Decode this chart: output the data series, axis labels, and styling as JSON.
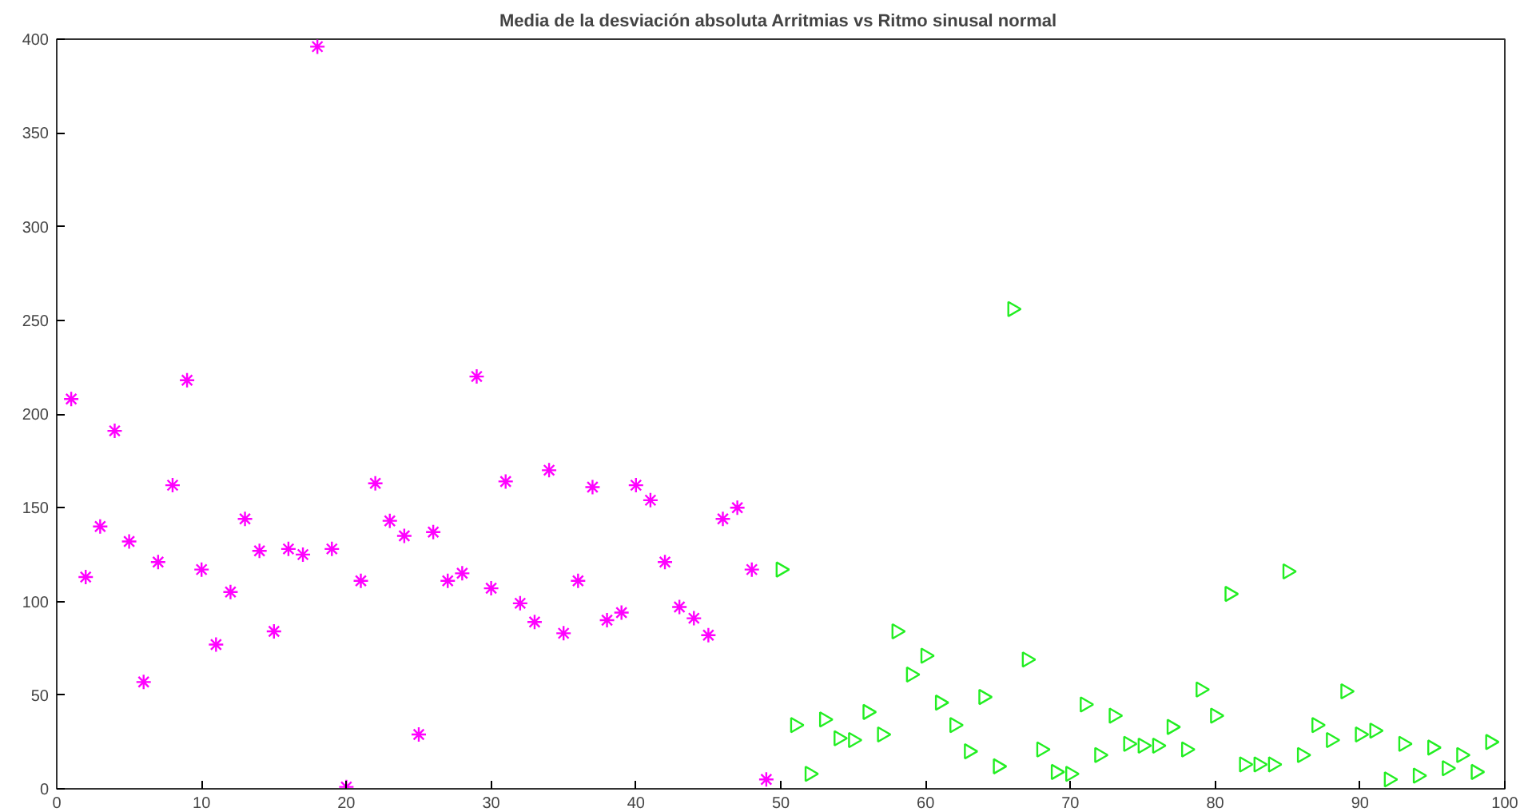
{
  "chart_data": {
    "type": "scatter",
    "title": "Media de la desviación absoluta  Arritmias vs Ritmo sinusal normal",
    "xlim": [
      0,
      100
    ],
    "xticks": [
      0,
      10,
      20,
      30,
      40,
      50,
      60,
      70,
      80,
      90,
      100
    ],
    "ylim": [
      0,
      400
    ],
    "yticks": [
      0,
      50,
      100,
      150,
      200,
      250,
      300,
      350,
      400
    ],
    "grid": false,
    "series": [
      {
        "color": "#ff00ff",
        "marker": "cross",
        "x": [
          1,
          2,
          3,
          4,
          5,
          6,
          7,
          8,
          9,
          10,
          11,
          12,
          13,
          14,
          15,
          16,
          17,
          18,
          19,
          20,
          21,
          22,
          23,
          24,
          25,
          26,
          27,
          28,
          29,
          30,
          31,
          32,
          33,
          34,
          35,
          36,
          37,
          38,
          39,
          40,
          41,
          42,
          43,
          44,
          45,
          46,
          47,
          48,
          49
        ],
        "values": [
          208,
          113,
          140,
          191,
          132,
          57,
          121,
          162,
          218,
          117,
          77,
          105,
          144,
          127,
          84,
          128,
          125,
          396,
          128,
          1,
          111,
          163,
          143,
          135,
          29,
          137,
          111,
          115,
          220,
          107,
          164,
          99,
          89,
          170,
          83,
          111,
          161,
          90,
          94,
          162,
          154,
          121,
          97,
          91,
          82,
          144,
          150,
          117,
          5
        ]
      },
      {
        "color": "#22ee22",
        "marker": "triangle",
        "x": [
          50,
          51,
          52,
          53,
          54,
          55,
          56,
          57,
          58,
          59,
          60,
          61,
          62,
          63,
          64,
          65,
          66,
          67,
          68,
          69,
          70,
          71,
          72,
          73,
          74,
          75,
          76,
          77,
          78,
          79,
          80,
          81,
          82,
          83,
          84,
          85,
          86,
          87,
          88,
          89,
          90,
          91,
          92,
          93,
          94,
          95,
          96,
          97,
          98,
          99
        ],
        "values": [
          117,
          34,
          8,
          37,
          27,
          26,
          41,
          29,
          84,
          61,
          71,
          46,
          34,
          20,
          49,
          12,
          256,
          69,
          21,
          9,
          8,
          45,
          18,
          39,
          24,
          23,
          23,
          33,
          21,
          53,
          39,
          104,
          13,
          13,
          13,
          116,
          18,
          34,
          26,
          52,
          29,
          31,
          5,
          24,
          7,
          22,
          11,
          18,
          9,
          25
        ]
      }
    ]
  }
}
